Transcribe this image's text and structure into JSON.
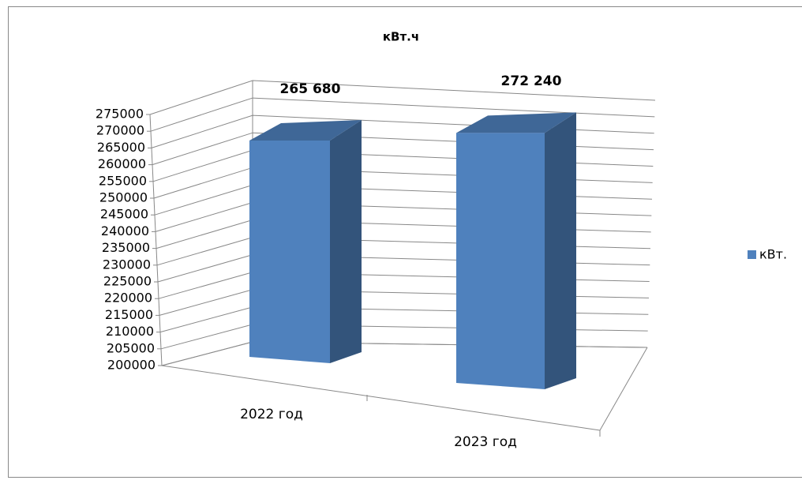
{
  "chart_data": {
    "type": "bar3d",
    "title": "кВт.ч",
    "categories": [
      "2022 год",
      "2023 год"
    ],
    "series": [
      {
        "name": "кВт.",
        "color": "#4f81bd",
        "values": [
          265680,
          272240
        ],
        "value_labels": [
          "265 680",
          "272 240"
        ]
      }
    ],
    "ylim": [
      200000,
      275000
    ],
    "yticks": [
      200000,
      205000,
      210000,
      215000,
      220000,
      225000,
      230000,
      235000,
      240000,
      245000,
      250000,
      255000,
      260000,
      265000,
      270000,
      275000
    ],
    "grid": true,
    "legend": "right"
  }
}
